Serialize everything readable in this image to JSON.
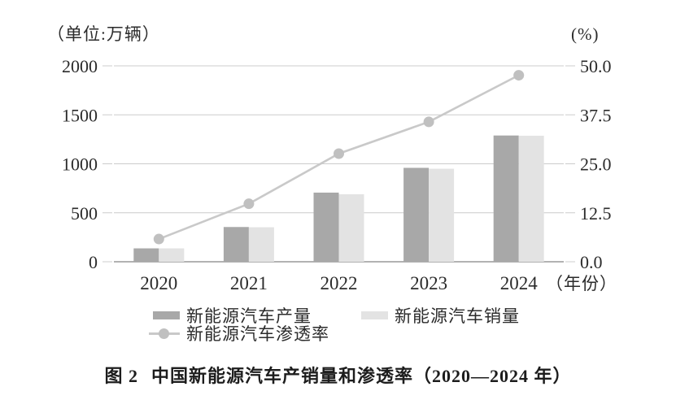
{
  "figure": {
    "unit_left": "（单位:万辆）",
    "unit_right": "(%)",
    "caption_prefix": "图 2",
    "caption_title": "中国新能源汽车产销量和渗透率（2020—2024 年）"
  },
  "legend": {
    "production": "新能源汽车产量",
    "sales": "新能源汽车销量",
    "penetration": "新能源汽车渗透率"
  },
  "colors": {
    "production_bar": "#a8a8a8",
    "sales_bar": "#e3e3e3",
    "line": "#c9c9c9",
    "dot": "#c0c0c0",
    "grid": "#cccccc",
    "axis": "#999999",
    "text": "#2b2b2b"
  },
  "chart_data": {
    "type": "bar+line combo",
    "title": "图 2 中国新能源汽车产销量和渗透率（2020—2024 年）",
    "categories": [
      "2020",
      "2021",
      "2022",
      "2023",
      "2024"
    ],
    "x_suffix": "（年份）",
    "series": [
      {
        "name": "新能源汽车产量",
        "type": "bar",
        "axis": "left",
        "values": [
          136.6,
          354.5,
          705.8,
          958.7,
          1288.8
        ]
      },
      {
        "name": "新能源汽车销量",
        "type": "bar",
        "axis": "left",
        "values": [
          136.7,
          352.1,
          688.7,
          949.5,
          1286.6
        ]
      },
      {
        "name": "新能源汽车渗透率",
        "type": "line",
        "axis": "right",
        "values": [
          5.8,
          14.8,
          27.6,
          35.7,
          47.6
        ]
      }
    ],
    "left_axis": {
      "unit": "（单位:万辆）",
      "ticks": [
        0,
        500,
        1000,
        1500,
        2000
      ],
      "tick_labels": [
        "0",
        "500",
        "1000",
        "1500",
        "2000"
      ],
      "range": [
        0,
        2000
      ]
    },
    "right_axis": {
      "unit": "(%)",
      "ticks": [
        0,
        12.5,
        25,
        37.5,
        50
      ],
      "tick_labels": [
        "0.0",
        "12.5",
        "25.0",
        "37.5",
        "50.0"
      ],
      "range": [
        0,
        50
      ]
    },
    "grid": true,
    "legend_position": "bottom"
  }
}
